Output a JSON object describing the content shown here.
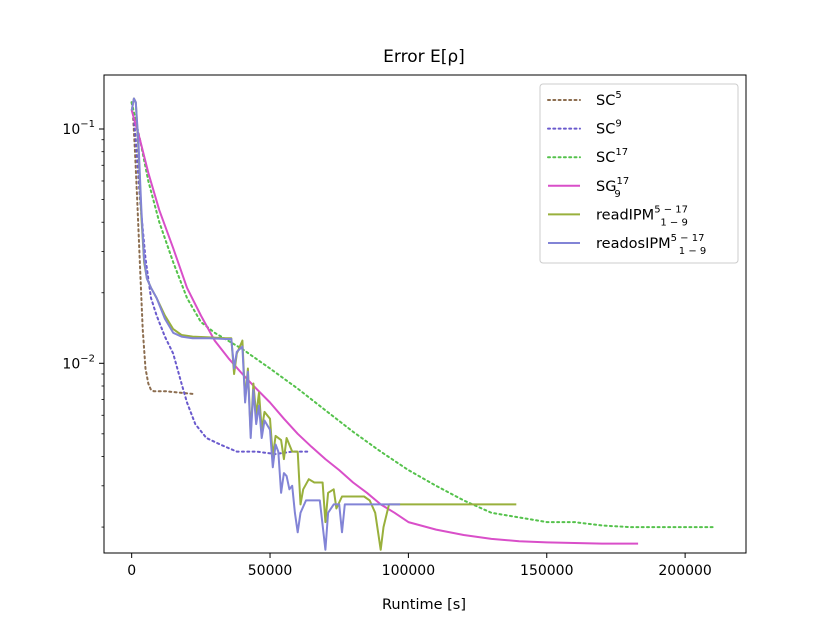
{
  "chart_data": {
    "type": "line",
    "title": "Error E[ρ]",
    "xlabel": "Runtime [s]",
    "ylabel": "",
    "xlim": [
      -10000,
      222000
    ],
    "ylim": [
      0.00155,
      0.17
    ],
    "yscale": "log",
    "grid": false,
    "legend_position": "top-right",
    "x_ticks": [
      0,
      50000,
      100000,
      150000,
      200000
    ],
    "x_tick_labels": [
      "0",
      "50000",
      "100000",
      "150000",
      "200000"
    ],
    "y_ticks": [
      0.1,
      0.01
    ],
    "y_tick_labels": [
      {
        "base": "10",
        "exp": "−1"
      },
      {
        "base": "10",
        "exp": "−2"
      }
    ],
    "series": [
      {
        "name": "SC^5",
        "label_base": "SC",
        "label_sup": "5",
        "label_sub": "",
        "color": "#8c6d4f",
        "style": "dotted",
        "points": [
          [
            0,
            0.13
          ],
          [
            400,
            0.12
          ],
          [
            1200,
            0.08
          ],
          [
            2000,
            0.05
          ],
          [
            3000,
            0.026
          ],
          [
            4000,
            0.014
          ],
          [
            5000,
            0.0095
          ],
          [
            6000,
            0.0082
          ],
          [
            7000,
            0.0077
          ],
          [
            8000,
            0.0076
          ],
          [
            12000,
            0.0076
          ],
          [
            22000,
            0.0074
          ]
        ]
      },
      {
        "name": "SC^9",
        "label_base": "SC",
        "label_sup": "9",
        "label_sub": "",
        "color": "#6a5acd",
        "style": "dotted",
        "points": [
          [
            0,
            0.13
          ],
          [
            500,
            0.12
          ],
          [
            1500,
            0.09
          ],
          [
            3000,
            0.05
          ],
          [
            5000,
            0.028
          ],
          [
            7000,
            0.019
          ],
          [
            9000,
            0.016
          ],
          [
            12000,
            0.013
          ],
          [
            15000,
            0.011
          ],
          [
            18000,
            0.0082
          ],
          [
            20000,
            0.0068
          ],
          [
            23000,
            0.0055
          ],
          [
            27000,
            0.0048
          ],
          [
            32000,
            0.0045
          ],
          [
            38000,
            0.0042
          ],
          [
            45000,
            0.0042
          ],
          [
            52000,
            0.0041
          ],
          [
            58000,
            0.0042
          ],
          [
            64000,
            0.0042
          ]
        ]
      },
      {
        "name": "SC^17",
        "label_base": "SC",
        "label_sup": "17",
        "label_sub": "",
        "color": "#55c24c",
        "style": "dotted",
        "points": [
          [
            0,
            0.13
          ],
          [
            3000,
            0.09
          ],
          [
            6000,
            0.06
          ],
          [
            10000,
            0.04
          ],
          [
            15000,
            0.027
          ],
          [
            20000,
            0.019
          ],
          [
            25000,
            0.015
          ],
          [
            30000,
            0.0135
          ],
          [
            40000,
            0.0115
          ],
          [
            50000,
            0.0095
          ],
          [
            60000,
            0.0078
          ],
          [
            70000,
            0.0063
          ],
          [
            80000,
            0.0051
          ],
          [
            90000,
            0.0042
          ],
          [
            100000,
            0.0035
          ],
          [
            110000,
            0.003
          ],
          [
            120000,
            0.0026
          ],
          [
            130000,
            0.0023
          ],
          [
            140000,
            0.0022
          ],
          [
            150000,
            0.0021
          ],
          [
            160000,
            0.0021
          ],
          [
            170000,
            0.00203
          ],
          [
            180000,
            0.002
          ],
          [
            190000,
            0.002
          ],
          [
            200000,
            0.002
          ],
          [
            211000,
            0.002
          ]
        ]
      },
      {
        "name": "SG_9^17",
        "label_base": "SG",
        "label_sup": "17",
        "label_sub": "9",
        "color": "#d94fc9",
        "style": "solid",
        "points": [
          [
            0,
            0.12
          ],
          [
            3000,
            0.09
          ],
          [
            6000,
            0.065
          ],
          [
            10000,
            0.045
          ],
          [
            15000,
            0.031
          ],
          [
            20000,
            0.021
          ],
          [
            25000,
            0.016
          ],
          [
            30000,
            0.0125
          ],
          [
            35000,
            0.0105
          ],
          [
            40000,
            0.009
          ],
          [
            45000,
            0.0078
          ],
          [
            50000,
            0.0068
          ],
          [
            55000,
            0.0058
          ],
          [
            60000,
            0.005
          ],
          [
            65000,
            0.0044
          ],
          [
            70000,
            0.0039
          ],
          [
            75000,
            0.0035
          ],
          [
            80000,
            0.0031
          ],
          [
            85000,
            0.0028
          ],
          [
            90000,
            0.0025
          ],
          [
            95000,
            0.0023
          ],
          [
            100000,
            0.0021
          ],
          [
            110000,
            0.00195
          ],
          [
            120000,
            0.00185
          ],
          [
            130000,
            0.00178
          ],
          [
            140000,
            0.00174
          ],
          [
            150000,
            0.00172
          ],
          [
            160000,
            0.00171
          ],
          [
            170000,
            0.0017
          ],
          [
            183000,
            0.0017
          ]
        ]
      },
      {
        "name": "readIPM_{1−9}^{5−17}",
        "label_base": "readIPM",
        "label_sup": "5 − 17",
        "label_sub": "1 − 9",
        "color": "#99b03c",
        "style": "solid",
        "points": [
          [
            0,
            0.12
          ],
          [
            800,
            0.135
          ],
          [
            1500,
            0.13
          ],
          [
            2500,
            0.08
          ],
          [
            3500,
            0.042
          ],
          [
            4500,
            0.027
          ],
          [
            5500,
            0.023
          ],
          [
            7000,
            0.021
          ],
          [
            9000,
            0.019
          ],
          [
            12000,
            0.016
          ],
          [
            15000,
            0.014
          ],
          [
            18000,
            0.0132
          ],
          [
            22000,
            0.013
          ],
          [
            28000,
            0.0129
          ],
          [
            34000,
            0.0128
          ],
          [
            36000,
            0.0128
          ],
          [
            37000,
            0.009
          ],
          [
            38000,
            0.011
          ],
          [
            40000,
            0.0125
          ],
          [
            41000,
            0.007
          ],
          [
            42000,
            0.0095
          ],
          [
            43000,
            0.005
          ],
          [
            44000,
            0.0082
          ],
          [
            45000,
            0.006
          ],
          [
            46000,
            0.0075
          ],
          [
            47000,
            0.0052
          ],
          [
            48000,
            0.0062
          ],
          [
            50000,
            0.0058
          ],
          [
            51000,
            0.004
          ],
          [
            52000,
            0.0049
          ],
          [
            54000,
            0.0047
          ],
          [
            55000,
            0.0039
          ],
          [
            56000,
            0.0048
          ],
          [
            58000,
            0.0042
          ],
          [
            60000,
            0.0042
          ],
          [
            61000,
            0.0025
          ],
          [
            62000,
            0.0029
          ],
          [
            64000,
            0.0032
          ],
          [
            66000,
            0.0031
          ],
          [
            69000,
            0.0031
          ],
          [
            70000,
            0.0021
          ],
          [
            71000,
            0.0028
          ],
          [
            73000,
            0.0029
          ],
          [
            74000,
            0.0024
          ],
          [
            76000,
            0.0027
          ],
          [
            79000,
            0.0027
          ],
          [
            82000,
            0.0027
          ],
          [
            84000,
            0.0027
          ],
          [
            86000,
            0.0026
          ],
          [
            88000,
            0.0023
          ],
          [
            90000,
            0.0016
          ],
          [
            91000,
            0.002
          ],
          [
            93000,
            0.0025
          ],
          [
            95000,
            0.0025
          ],
          [
            100000,
            0.0025
          ],
          [
            110000,
            0.0025
          ],
          [
            120000,
            0.0025
          ],
          [
            130000,
            0.0025
          ],
          [
            139000,
            0.0025
          ]
        ]
      },
      {
        "name": "readosIPM_{1−9}^{5−17}",
        "label_base": "readosIPM",
        "label_sup": "5 − 17",
        "label_sub": "1 − 9",
        "color": "#8284d6",
        "style": "solid",
        "points": [
          [
            0,
            0.12
          ],
          [
            800,
            0.135
          ],
          [
            1500,
            0.13
          ],
          [
            2500,
            0.085
          ],
          [
            3500,
            0.045
          ],
          [
            4500,
            0.028
          ],
          [
            5500,
            0.023
          ],
          [
            7000,
            0.021
          ],
          [
            9000,
            0.019
          ],
          [
            12000,
            0.0155
          ],
          [
            15000,
            0.0135
          ],
          [
            18000,
            0.013
          ],
          [
            22000,
            0.0128
          ],
          [
            28000,
            0.0128
          ],
          [
            34000,
            0.0127
          ],
          [
            36000,
            0.0127
          ],
          [
            37000,
            0.0095
          ],
          [
            38000,
            0.0112
          ],
          [
            40000,
            0.0118
          ],
          [
            41000,
            0.0068
          ],
          [
            42000,
            0.0092
          ],
          [
            43000,
            0.0048
          ],
          [
            44000,
            0.0077
          ],
          [
            45000,
            0.0055
          ],
          [
            46000,
            0.0066
          ],
          [
            47000,
            0.0048
          ],
          [
            48000,
            0.0057
          ],
          [
            50000,
            0.0052
          ],
          [
            51000,
            0.0036
          ],
          [
            52000,
            0.0045
          ],
          [
            53000,
            0.0042
          ],
          [
            54000,
            0.0028
          ],
          [
            55000,
            0.0034
          ],
          [
            56000,
            0.0033
          ],
          [
            57000,
            0.0029
          ],
          [
            58000,
            0.003
          ],
          [
            59000,
            0.0023
          ],
          [
            60000,
            0.0019
          ],
          [
            61000,
            0.0023
          ],
          [
            63000,
            0.0026
          ],
          [
            66000,
            0.0026
          ],
          [
            68000,
            0.0026
          ],
          [
            70000,
            0.0016
          ],
          [
            71000,
            0.0023
          ],
          [
            73000,
            0.0025
          ],
          [
            75000,
            0.0025
          ],
          [
            76000,
            0.0019
          ],
          [
            77000,
            0.0025
          ],
          [
            80000,
            0.0025
          ],
          [
            85000,
            0.0025
          ],
          [
            90000,
            0.0025
          ],
          [
            93000,
            0.0025
          ],
          [
            97000,
            0.0025
          ]
        ]
      }
    ]
  }
}
